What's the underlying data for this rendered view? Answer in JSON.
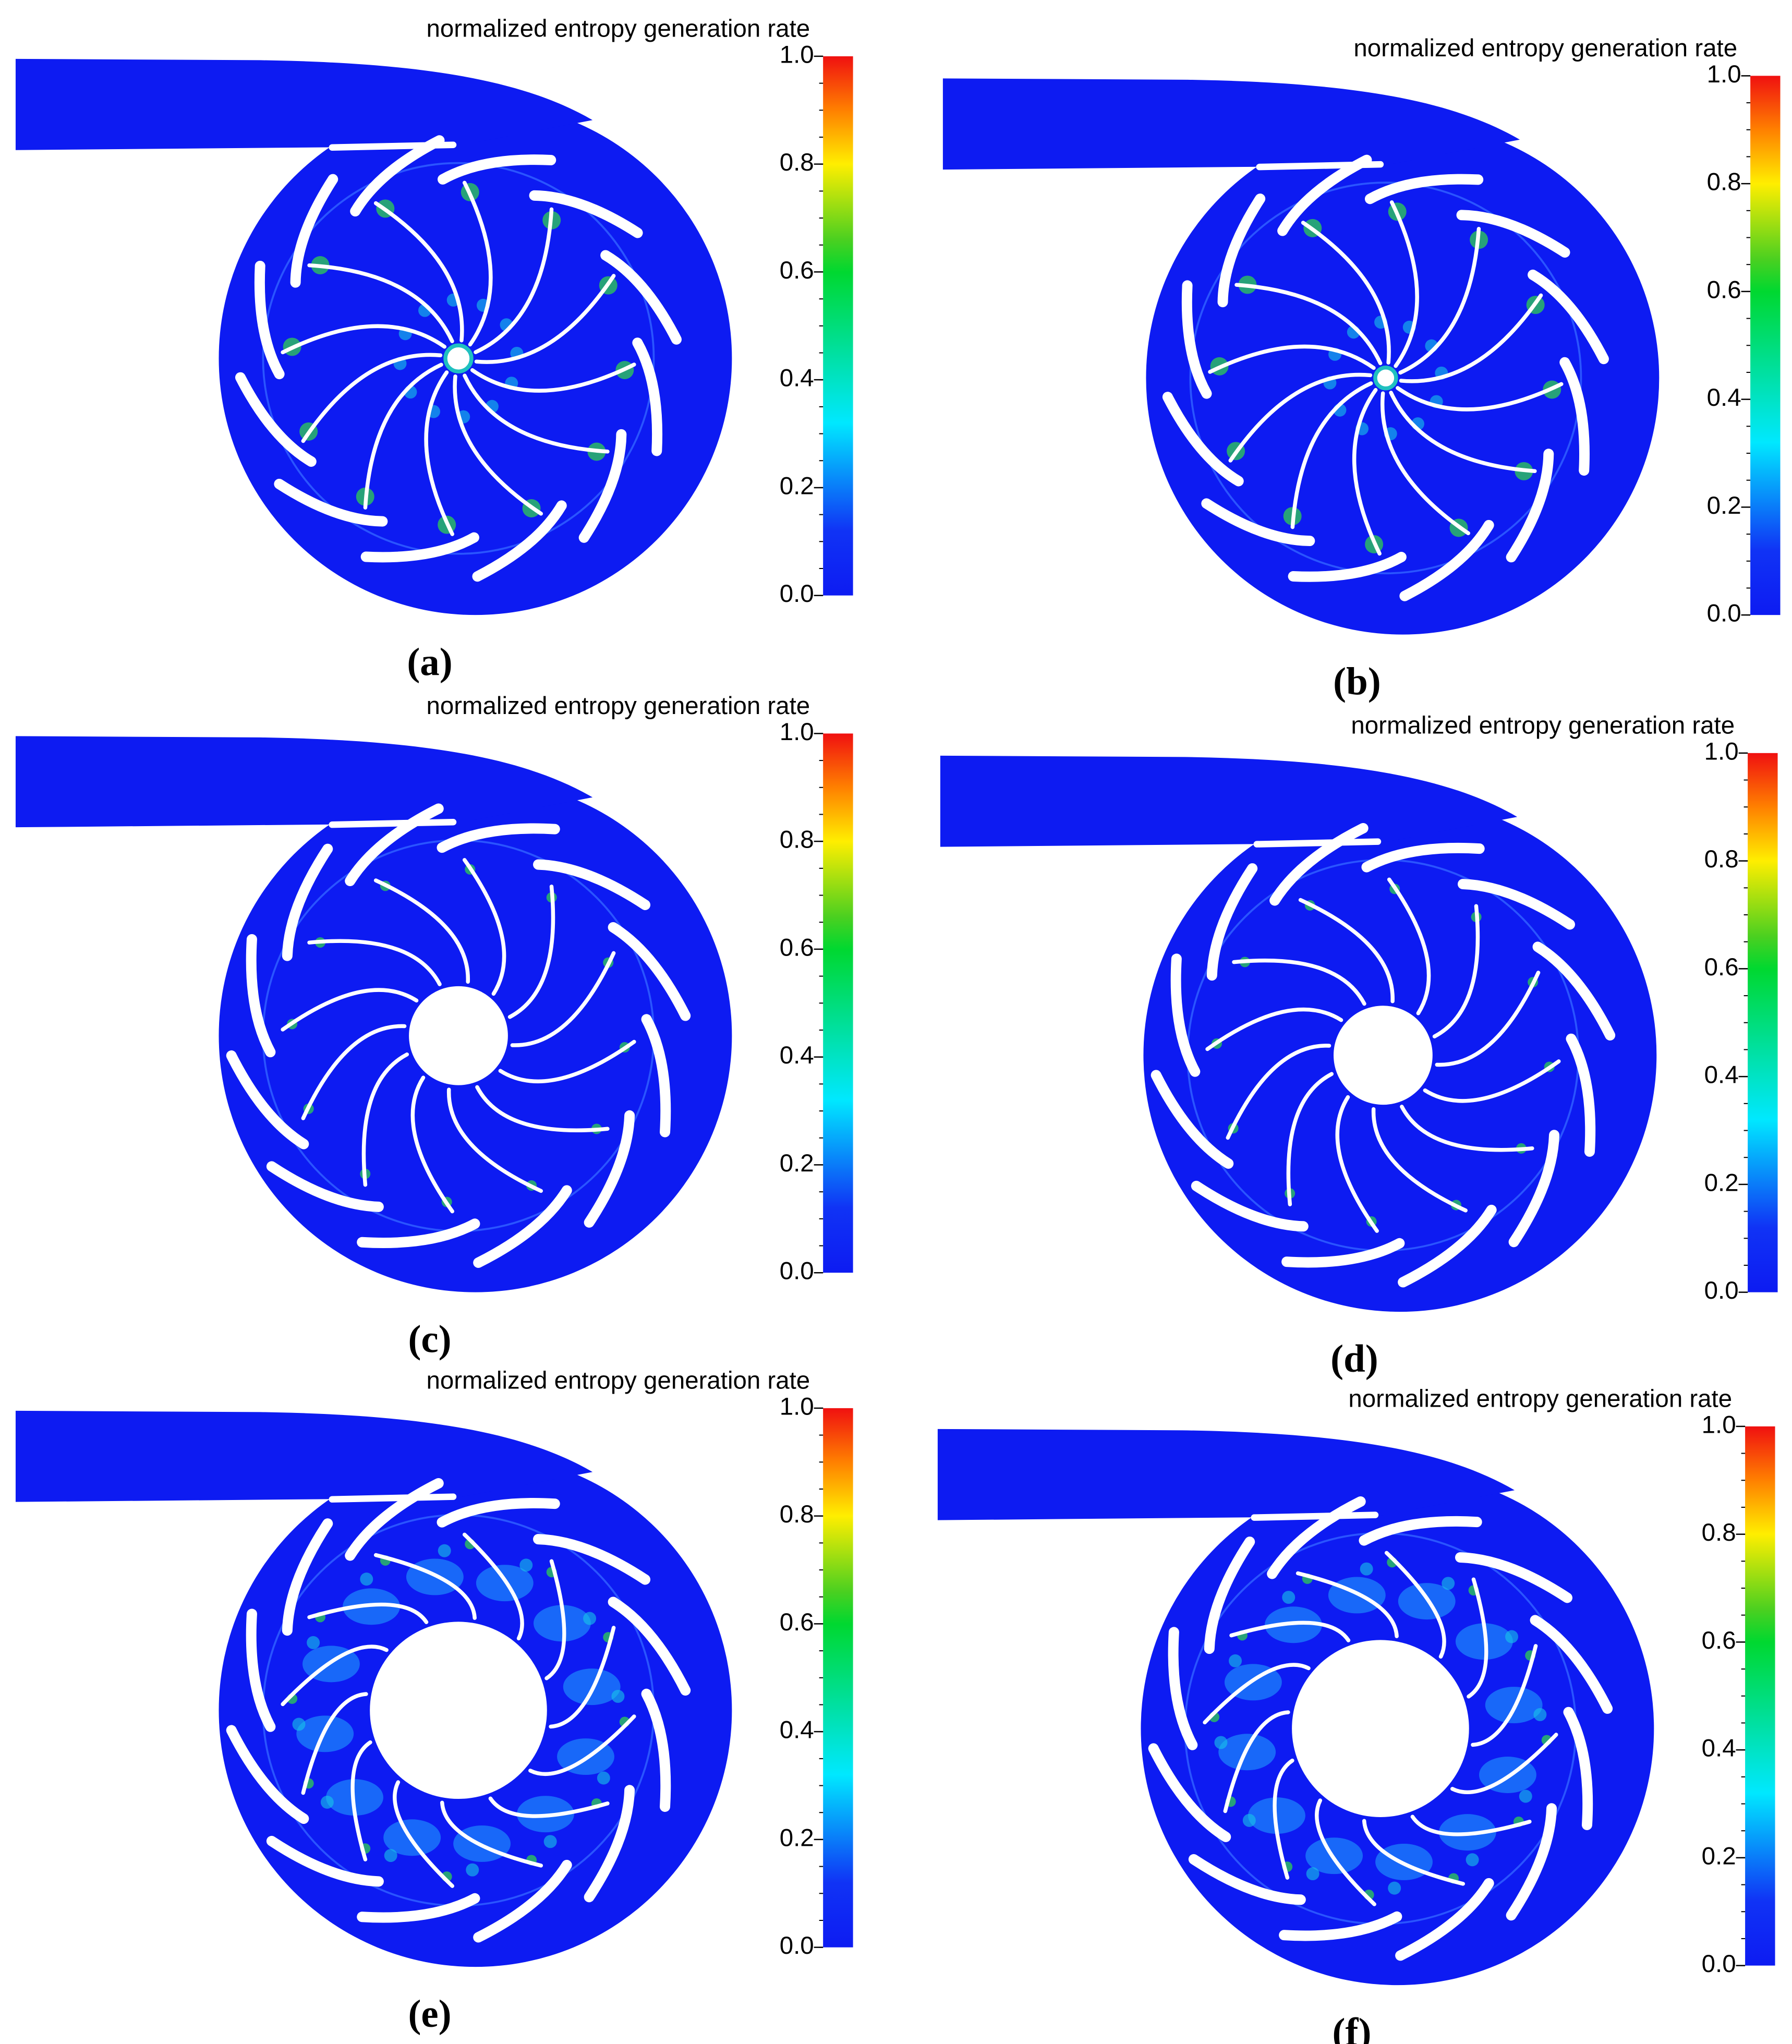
{
  "panels": [
    {
      "title": "normalized entropy generation rate",
      "label": "(a)",
      "colorbar": {
        "lim": [
          0,
          1
        ],
        "ticks": [
          {
            "value": 0,
            "label": "0.0"
          },
          {
            "value": 0.2,
            "label": "0.2"
          },
          {
            "value": 0.4,
            "label": "0.4"
          },
          {
            "value": 0.6,
            "label": "0.6"
          },
          {
            "value": 0.8,
            "label": "0.8"
          },
          {
            "value": 1,
            "label": "1.0"
          }
        ]
      }
    },
    {
      "title": "normalized entropy generation rate",
      "label": "(b)",
      "colorbar": {
        "lim": [
          0,
          1
        ],
        "ticks": [
          {
            "value": 0,
            "label": "0.0"
          },
          {
            "value": 0.2,
            "label": "0.2"
          },
          {
            "value": 0.4,
            "label": "0.4"
          },
          {
            "value": 0.6,
            "label": "0.6"
          },
          {
            "value": 0.8,
            "label": "0.8"
          },
          {
            "value": 1,
            "label": "1.0"
          }
        ]
      }
    },
    {
      "title": "normalized entropy generation rate",
      "label": "(c)",
      "colorbar": {
        "lim": [
          0,
          1
        ],
        "ticks": [
          {
            "value": 0,
            "label": "0.0"
          },
          {
            "value": 0.2,
            "label": "0.2"
          },
          {
            "value": 0.4,
            "label": "0.4"
          },
          {
            "value": 0.6,
            "label": "0.6"
          },
          {
            "value": 0.8,
            "label": "0.8"
          },
          {
            "value": 1,
            "label": "1.0"
          }
        ]
      }
    },
    {
      "title": "normalized entropy generation rate",
      "label": "(d)",
      "colorbar": {
        "lim": [
          0,
          1
        ],
        "ticks": [
          {
            "value": 0,
            "label": "0.0"
          },
          {
            "value": 0.2,
            "label": "0.2"
          },
          {
            "value": 0.4,
            "label": "0.4"
          },
          {
            "value": 0.6,
            "label": "0.6"
          },
          {
            "value": 0.8,
            "label": "0.8"
          },
          {
            "value": 1,
            "label": "1.0"
          }
        ]
      }
    },
    {
      "title": "normalized entropy generation rate",
      "label": "(e)",
      "colorbar": {
        "lim": [
          0,
          1
        ],
        "ticks": [
          {
            "value": 0,
            "label": "0.0"
          },
          {
            "value": 0.2,
            "label": "0.2"
          },
          {
            "value": 0.4,
            "label": "0.4"
          },
          {
            "value": 0.6,
            "label": "0.6"
          },
          {
            "value": 0.8,
            "label": "0.8"
          },
          {
            "value": 1,
            "label": "1.0"
          }
        ]
      }
    },
    {
      "title": "normalized entropy generation rate",
      "label": "(f)",
      "colorbar": {
        "lim": [
          0,
          1
        ],
        "ticks": [
          {
            "value": 0,
            "label": "0.0"
          },
          {
            "value": 0.2,
            "label": "0.2"
          },
          {
            "value": 0.4,
            "label": "0.4"
          },
          {
            "value": 0.6,
            "label": "0.6"
          },
          {
            "value": 0.8,
            "label": "0.8"
          },
          {
            "value": 1,
            "label": "1.0"
          }
        ]
      }
    }
  ]
}
